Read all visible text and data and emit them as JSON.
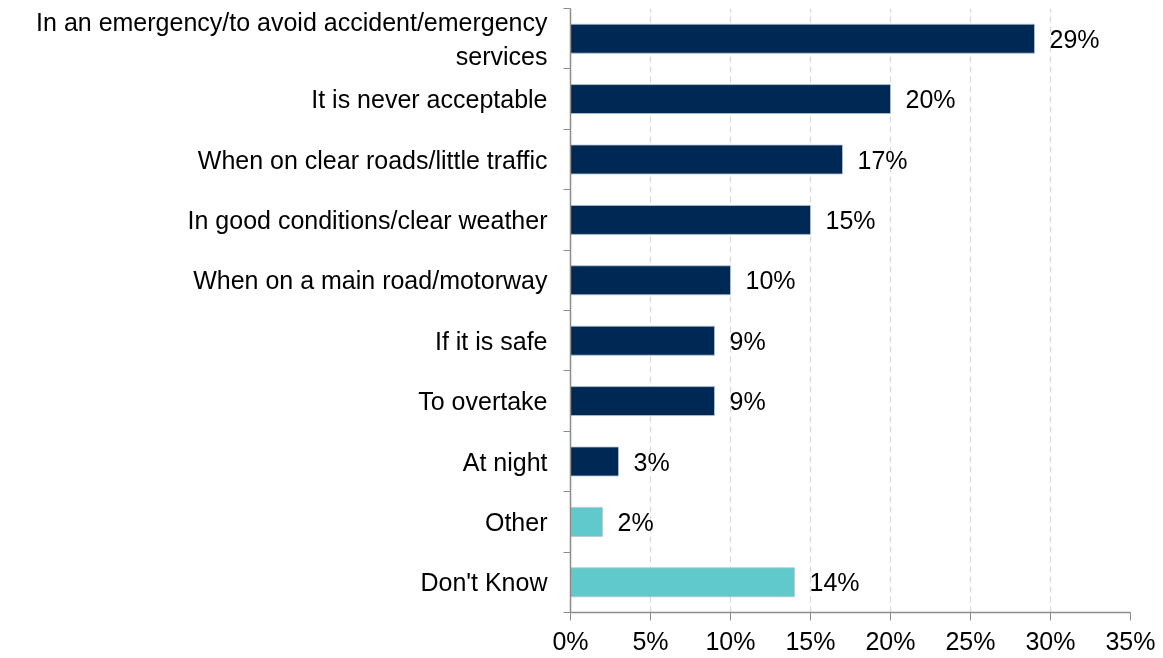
{
  "chart_data": {
    "type": "bar",
    "orientation": "horizontal",
    "categories": [
      "In an emergency/to avoid accident/emergency\nservices",
      "It is never acceptable",
      "When on clear roads/little traffic",
      "In good conditions/clear weather",
      "When on a main road/motorway",
      "If it is safe",
      "To overtake",
      "At night",
      "Other",
      "Don't Know"
    ],
    "values": [
      29,
      20,
      17,
      15,
      10,
      9,
      9,
      3,
      2,
      14
    ],
    "colors": [
      "#002855",
      "#002855",
      "#002855",
      "#002855",
      "#002855",
      "#002855",
      "#002855",
      "#002855",
      "#5fc9cc",
      "#5fc9cc"
    ],
    "value_labels": [
      "29%",
      "20%",
      "17%",
      "15%",
      "10%",
      "9%",
      "9%",
      "3%",
      "2%",
      "14%"
    ],
    "xlim": [
      0,
      35
    ],
    "xticks": [
      {
        "value": 0,
        "label": "0%"
      },
      {
        "value": 5,
        "label": "5%"
      },
      {
        "value": 10,
        "label": "10%"
      },
      {
        "value": 15,
        "label": "15%"
      },
      {
        "value": 20,
        "label": "20%"
      },
      {
        "value": 25,
        "label": "25%"
      },
      {
        "value": 30,
        "label": "30%"
      },
      {
        "value": 35,
        "label": "35%"
      }
    ],
    "grid": "x"
  }
}
